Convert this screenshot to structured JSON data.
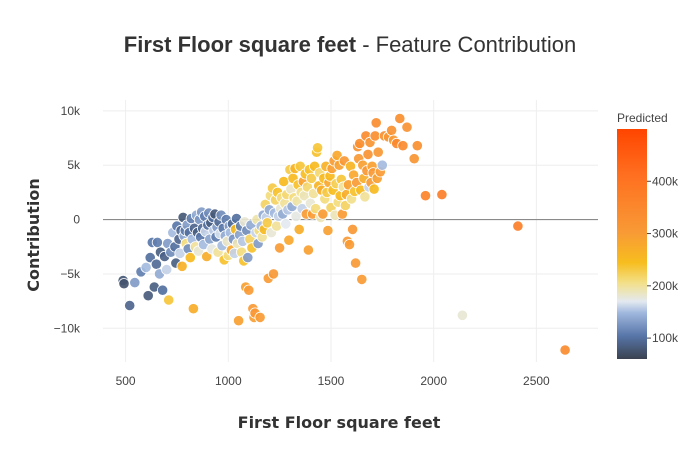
{
  "chart_data": {
    "type": "scatter",
    "title": "First Floor square feet",
    "subtitle": " - Feature Contribution",
    "xlabel": "First Floor square feet",
    "ylabel": "Contribution",
    "xlim": [
      390,
      2800
    ],
    "ylim": [
      -13100,
      11000
    ],
    "x_ticks": [
      500,
      1000,
      1500,
      2000,
      2500
    ],
    "x_tick_labels": [
      "500",
      "1000",
      "1500",
      "2000",
      "2500"
    ],
    "y_ticks": [
      10000,
      5000,
      0,
      -5000,
      -10000
    ],
    "y_tick_labels": [
      "10k",
      "5k",
      "0",
      "−5k",
      "−10k"
    ],
    "grid": true,
    "zero_line": true,
    "colorbar": {
      "title": "Predicted",
      "range": [
        60000,
        500000
      ],
      "ticks": [
        100000,
        200000,
        300000,
        400000
      ],
      "tick_labels": [
        "100k",
        "200k",
        "300k",
        "400k"
      ],
      "colorscale": [
        [
          0.0,
          "#3a4250"
        ],
        [
          0.1,
          "#5775a8"
        ],
        [
          0.2,
          "#9fb7dd"
        ],
        [
          0.25,
          "#e3e9f0"
        ],
        [
          0.33,
          "#f3e08a"
        ],
        [
          0.42,
          "#f7bd1e"
        ],
        [
          0.55,
          "#f89a36"
        ],
        [
          0.8,
          "#ff6f1f"
        ],
        [
          1.0,
          "#ff4500"
        ]
      ]
    },
    "points": [
      {
        "x": 488,
        "y": -5600,
        "c": 80000
      },
      {
        "x": 492,
        "y": -5900,
        "c": 75000
      },
      {
        "x": 520,
        "y": -7900,
        "c": 90000
      },
      {
        "x": 545,
        "y": -5800,
        "c": 130000
      },
      {
        "x": 575,
        "y": -4800,
        "c": 110000
      },
      {
        "x": 600,
        "y": -4400,
        "c": 150000
      },
      {
        "x": 610,
        "y": -7000,
        "c": 82000
      },
      {
        "x": 620,
        "y": -3500,
        "c": 100000
      },
      {
        "x": 630,
        "y": -2100,
        "c": 105000
      },
      {
        "x": 640,
        "y": -6200,
        "c": 85000
      },
      {
        "x": 650,
        "y": -4100,
        "c": 95000
      },
      {
        "x": 655,
        "y": -2100,
        "c": 110000
      },
      {
        "x": 665,
        "y": -5000,
        "c": 140000
      },
      {
        "x": 670,
        "y": -3000,
        "c": 85000
      },
      {
        "x": 680,
        "y": -6500,
        "c": 100000
      },
      {
        "x": 690,
        "y": -3400,
        "c": 88000
      },
      {
        "x": 700,
        "y": -4600,
        "c": 160000
      },
      {
        "x": 705,
        "y": -2200,
        "c": 130000
      },
      {
        "x": 710,
        "y": -7400,
        "c": 235000
      },
      {
        "x": 720,
        "y": -3000,
        "c": 120000
      },
      {
        "x": 730,
        "y": -1200,
        "c": 150000
      },
      {
        "x": 740,
        "y": -2500,
        "c": 100000
      },
      {
        "x": 745,
        "y": -4000,
        "c": 85000
      },
      {
        "x": 750,
        "y": -600,
        "c": 105000
      },
      {
        "x": 760,
        "y": -1800,
        "c": 90000
      },
      {
        "x": 765,
        "y": -3100,
        "c": 160000
      },
      {
        "x": 770,
        "y": -1000,
        "c": 95000
      },
      {
        "x": 775,
        "y": -4300,
        "c": 265000
      },
      {
        "x": 780,
        "y": 200,
        "c": 80000
      },
      {
        "x": 785,
        "y": -1500,
        "c": 140000
      },
      {
        "x": 790,
        "y": -1000,
        "c": 105000
      },
      {
        "x": 795,
        "y": -2200,
        "c": 210000
      },
      {
        "x": 800,
        "y": -500,
        "c": 130000
      },
      {
        "x": 805,
        "y": -2700,
        "c": 120000
      },
      {
        "x": 810,
        "y": -1200,
        "c": 100000
      },
      {
        "x": 815,
        "y": -3500,
        "c": 250000
      },
      {
        "x": 820,
        "y": 100,
        "c": 110000
      },
      {
        "x": 825,
        "y": -1800,
        "c": 150000
      },
      {
        "x": 830,
        "y": -8200,
        "c": 270000
      },
      {
        "x": 835,
        "y": -800,
        "c": 90000
      },
      {
        "x": 840,
        "y": -2500,
        "c": 200000
      },
      {
        "x": 845,
        "y": 400,
        "c": 140000
      },
      {
        "x": 850,
        "y": -1200,
        "c": 85000
      },
      {
        "x": 855,
        "y": -2900,
        "c": 180000
      },
      {
        "x": 860,
        "y": 0,
        "c": 125000
      },
      {
        "x": 865,
        "y": -1600,
        "c": 105000
      },
      {
        "x": 870,
        "y": 700,
        "c": 130000
      },
      {
        "x": 875,
        "y": -800,
        "c": 95000
      },
      {
        "x": 880,
        "y": -2300,
        "c": 150000
      },
      {
        "x": 885,
        "y": 300,
        "c": 110000
      },
      {
        "x": 890,
        "y": -1100,
        "c": 160000
      },
      {
        "x": 895,
        "y": -3400,
        "c": 270000
      },
      {
        "x": 900,
        "y": -500,
        "c": 100000
      },
      {
        "x": 905,
        "y": 600,
        "c": 120000
      },
      {
        "x": 910,
        "y": -1800,
        "c": 135000
      },
      {
        "x": 915,
        "y": -300,
        "c": 85000
      },
      {
        "x": 920,
        "y": -2700,
        "c": 175000
      },
      {
        "x": 925,
        "y": 200,
        "c": 100000
      },
      {
        "x": 930,
        "y": -1000,
        "c": 155000
      },
      {
        "x": 935,
        "y": 500,
        "c": 80000
      },
      {
        "x": 940,
        "y": -1600,
        "c": 110000
      },
      {
        "x": 945,
        "y": -700,
        "c": 130000
      },
      {
        "x": 950,
        "y": -3000,
        "c": 200000
      },
      {
        "x": 955,
        "y": -200,
        "c": 95000
      },
      {
        "x": 960,
        "y": -1300,
        "c": 165000
      },
      {
        "x": 965,
        "y": 400,
        "c": 120000
      },
      {
        "x": 970,
        "y": -2400,
        "c": 150000
      },
      {
        "x": 975,
        "y": -800,
        "c": 105000
      },
      {
        "x": 980,
        "y": -3700,
        "c": 240000
      },
      {
        "x": 985,
        "y": -1500,
        "c": 140000
      },
      {
        "x": 990,
        "y": 0,
        "c": 110000
      },
      {
        "x": 995,
        "y": -2000,
        "c": 185000
      },
      {
        "x": 1000,
        "y": -3300,
        "c": 210000
      },
      {
        "x": 1005,
        "y": -600,
        "c": 130000
      },
      {
        "x": 1010,
        "y": -1200,
        "c": 150000
      },
      {
        "x": 1015,
        "y": -2800,
        "c": 280000
      },
      {
        "x": 1020,
        "y": -400,
        "c": 95000
      },
      {
        "x": 1025,
        "y": -1800,
        "c": 125000
      },
      {
        "x": 1030,
        "y": -3100,
        "c": 160000
      },
      {
        "x": 1035,
        "y": -900,
        "c": 250000
      },
      {
        "x": 1040,
        "y": 100,
        "c": 100000
      },
      {
        "x": 1045,
        "y": -2200,
        "c": 190000
      },
      {
        "x": 1050,
        "y": -9300,
        "c": 290000
      },
      {
        "x": 1055,
        "y": -1400,
        "c": 135000
      },
      {
        "x": 1060,
        "y": -600,
        "c": 110000
      },
      {
        "x": 1065,
        "y": -3000,
        "c": 210000
      },
      {
        "x": 1070,
        "y": -2000,
        "c": 155000
      },
      {
        "x": 1075,
        "y": -3800,
        "c": 240000
      },
      {
        "x": 1080,
        "y": -200,
        "c": 180000
      },
      {
        "x": 1085,
        "y": -6200,
        "c": 290000
      },
      {
        "x": 1090,
        "y": -1000,
        "c": 120000
      },
      {
        "x": 1095,
        "y": -3500,
        "c": 130000
      },
      {
        "x": 1100,
        "y": -6500,
        "c": 300000
      },
      {
        "x": 1105,
        "y": -1800,
        "c": 220000
      },
      {
        "x": 1110,
        "y": -500,
        "c": 140000
      },
      {
        "x": 1115,
        "y": -2600,
        "c": 240000
      },
      {
        "x": 1120,
        "y": -8200,
        "c": 305000
      },
      {
        "x": 1125,
        "y": -9000,
        "c": 295000
      },
      {
        "x": 1130,
        "y": -8600,
        "c": 310000
      },
      {
        "x": 1135,
        "y": -1200,
        "c": 160000
      },
      {
        "x": 1140,
        "y": 0,
        "c": 195000
      },
      {
        "x": 1145,
        "y": -2200,
        "c": 130000
      },
      {
        "x": 1150,
        "y": -1000,
        "c": 210000
      },
      {
        "x": 1155,
        "y": -9000,
        "c": 300000
      },
      {
        "x": 1160,
        "y": -600,
        "c": 150000
      },
      {
        "x": 1165,
        "y": -1600,
        "c": 200000
      },
      {
        "x": 1170,
        "y": 400,
        "c": 140000
      },
      {
        "x": 1175,
        "y": -900,
        "c": 250000
      },
      {
        "x": 1180,
        "y": 1400,
        "c": 220000
      },
      {
        "x": 1185,
        "y": 200,
        "c": 160000
      },
      {
        "x": 1190,
        "y": -300,
        "c": 230000
      },
      {
        "x": 1195,
        "y": -5400,
        "c": 300000
      },
      {
        "x": 1200,
        "y": 900,
        "c": 140000
      },
      {
        "x": 1205,
        "y": 2200,
        "c": 210000
      },
      {
        "x": 1210,
        "y": -1200,
        "c": 180000
      },
      {
        "x": 1215,
        "y": 2900,
        "c": 230000
      },
      {
        "x": 1220,
        "y": -5000,
        "c": 305000
      },
      {
        "x": 1225,
        "y": 600,
        "c": 150000
      },
      {
        "x": 1230,
        "y": 1800,
        "c": 220000
      },
      {
        "x": 1235,
        "y": -600,
        "c": 200000
      },
      {
        "x": 1240,
        "y": 2500,
        "c": 240000
      },
      {
        "x": 1245,
        "y": 300,
        "c": 160000
      },
      {
        "x": 1250,
        "y": -2600,
        "c": 300000
      },
      {
        "x": 1255,
        "y": 1000,
        "c": 180000
      },
      {
        "x": 1260,
        "y": 2000,
        "c": 210000
      },
      {
        "x": 1265,
        "y": 500,
        "c": 140000
      },
      {
        "x": 1270,
        "y": 3500,
        "c": 250000
      },
      {
        "x": 1275,
        "y": 1500,
        "c": 200000
      },
      {
        "x": 1280,
        "y": -400,
        "c": 170000
      },
      {
        "x": 1285,
        "y": 2300,
        "c": 215000
      },
      {
        "x": 1290,
        "y": 900,
        "c": 155000
      },
      {
        "x": 1295,
        "y": -1900,
        "c": 280000
      },
      {
        "x": 1300,
        "y": 4600,
        "c": 230000
      },
      {
        "x": 1305,
        "y": 2800,
        "c": 185000
      },
      {
        "x": 1310,
        "y": 1200,
        "c": 140000
      },
      {
        "x": 1315,
        "y": 3800,
        "c": 250000
      },
      {
        "x": 1320,
        "y": 2000,
        "c": 210000
      },
      {
        "x": 1325,
        "y": 4700,
        "c": 260000
      },
      {
        "x": 1330,
        "y": 300,
        "c": 175000
      },
      {
        "x": 1335,
        "y": 1700,
        "c": 195000
      },
      {
        "x": 1340,
        "y": 3200,
        "c": 240000
      },
      {
        "x": 1345,
        "y": -900,
        "c": 270000
      },
      {
        "x": 1350,
        "y": 4900,
        "c": 235000
      },
      {
        "x": 1355,
        "y": 2500,
        "c": 205000
      },
      {
        "x": 1360,
        "y": 1000,
        "c": 160000
      },
      {
        "x": 1365,
        "y": 3500,
        "c": 290000
      },
      {
        "x": 1370,
        "y": 2200,
        "c": 190000
      },
      {
        "x": 1375,
        "y": 4200,
        "c": 245000
      },
      {
        "x": 1380,
        "y": 500,
        "c": 300000
      },
      {
        "x": 1385,
        "y": 3000,
        "c": 215000
      },
      {
        "x": 1390,
        "y": -2800,
        "c": 290000
      },
      {
        "x": 1395,
        "y": 4600,
        "c": 240000
      },
      {
        "x": 1400,
        "y": 1500,
        "c": 180000
      },
      {
        "x": 1405,
        "y": 3800,
        "c": 230000
      },
      {
        "x": 1410,
        "y": 500,
        "c": 300000
      },
      {
        "x": 1415,
        "y": 2400,
        "c": 200000
      },
      {
        "x": 1420,
        "y": 4900,
        "c": 250000
      },
      {
        "x": 1425,
        "y": 1000,
        "c": 210000
      },
      {
        "x": 1430,
        "y": 6200,
        "c": 240000
      },
      {
        "x": 1435,
        "y": 6600,
        "c": 235000
      },
      {
        "x": 1440,
        "y": 3100,
        "c": 260000
      },
      {
        "x": 1445,
        "y": 4300,
        "c": 215000
      },
      {
        "x": 1450,
        "y": 200,
        "c": 190000
      },
      {
        "x": 1455,
        "y": 2700,
        "c": 270000
      },
      {
        "x": 1460,
        "y": 500,
        "c": 300000
      },
      {
        "x": 1465,
        "y": 3800,
        "c": 250000
      },
      {
        "x": 1470,
        "y": 1900,
        "c": 210000
      },
      {
        "x": 1475,
        "y": 4900,
        "c": 265000
      },
      {
        "x": 1480,
        "y": 2500,
        "c": 230000
      },
      {
        "x": 1485,
        "y": -1000,
        "c": 290000
      },
      {
        "x": 1490,
        "y": 3400,
        "c": 280000
      },
      {
        "x": 1495,
        "y": 4000,
        "c": 250000
      },
      {
        "x": 1500,
        "y": 1100,
        "c": 220000
      },
      {
        "x": 1505,
        "y": 4700,
        "c": 295000
      },
      {
        "x": 1510,
        "y": 2700,
        "c": 245000
      },
      {
        "x": 1515,
        "y": 5400,
        "c": 300000
      },
      {
        "x": 1520,
        "y": 400,
        "c": 190000
      },
      {
        "x": 1525,
        "y": 3300,
        "c": 225000
      },
      {
        "x": 1530,
        "y": 5900,
        "c": 280000
      },
      {
        "x": 1535,
        "y": 1600,
        "c": 210000
      },
      {
        "x": 1540,
        "y": 5000,
        "c": 290000
      },
      {
        "x": 1545,
        "y": 2200,
        "c": 250000
      },
      {
        "x": 1550,
        "y": 3700,
        "c": 235000
      },
      {
        "x": 1555,
        "y": 500,
        "c": 300000
      },
      {
        "x": 1560,
        "y": 3000,
        "c": 200000
      },
      {
        "x": 1565,
        "y": 5400,
        "c": 310000
      },
      {
        "x": 1570,
        "y": 1300,
        "c": 220000
      },
      {
        "x": 1575,
        "y": 2300,
        "c": 270000
      },
      {
        "x": 1580,
        "y": -2000,
        "c": 305000
      },
      {
        "x": 1585,
        "y": 3200,
        "c": 290000
      },
      {
        "x": 1590,
        "y": -2300,
        "c": 300000
      },
      {
        "x": 1595,
        "y": 4900,
        "c": 260000
      },
      {
        "x": 1600,
        "y": 1900,
        "c": 205000
      },
      {
        "x": 1605,
        "y": -900,
        "c": 310000
      },
      {
        "x": 1610,
        "y": 4100,
        "c": 280000
      },
      {
        "x": 1615,
        "y": 2600,
        "c": 240000
      },
      {
        "x": 1620,
        "y": -4000,
        "c": 305000
      },
      {
        "x": 1625,
        "y": 3400,
        "c": 300000
      },
      {
        "x": 1630,
        "y": 6700,
        "c": 320000
      },
      {
        "x": 1635,
        "y": 5600,
        "c": 305000
      },
      {
        "x": 1640,
        "y": 7000,
        "c": 330000
      },
      {
        "x": 1645,
        "y": 2700,
        "c": 250000
      },
      {
        "x": 1650,
        "y": -5500,
        "c": 300000
      },
      {
        "x": 1655,
        "y": 5000,
        "c": 290000
      },
      {
        "x": 1660,
        "y": 3800,
        "c": 270000
      },
      {
        "x": 1665,
        "y": 2100,
        "c": 200000
      },
      {
        "x": 1670,
        "y": 7700,
        "c": 340000
      },
      {
        "x": 1675,
        "y": 4500,
        "c": 310000
      },
      {
        "x": 1680,
        "y": 6000,
        "c": 320000
      },
      {
        "x": 1685,
        "y": 3000,
        "c": 160000
      },
      {
        "x": 1690,
        "y": 7100,
        "c": 315000
      },
      {
        "x": 1695,
        "y": 3400,
        "c": 300000
      },
      {
        "x": 1700,
        "y": 4900,
        "c": 290000
      },
      {
        "x": 1705,
        "y": 4300,
        "c": 305000
      },
      {
        "x": 1710,
        "y": 2800,
        "c": 250000
      },
      {
        "x": 1715,
        "y": 7700,
        "c": 330000
      },
      {
        "x": 1720,
        "y": 8900,
        "c": 335000
      },
      {
        "x": 1725,
        "y": 3800,
        "c": 290000
      },
      {
        "x": 1730,
        "y": 6200,
        "c": 310000
      },
      {
        "x": 1740,
        "y": 4400,
        "c": 300000
      },
      {
        "x": 1750,
        "y": 5000,
        "c": 150000
      },
      {
        "x": 1760,
        "y": 7700,
        "c": 330000
      },
      {
        "x": 1780,
        "y": 7600,
        "c": 310000
      },
      {
        "x": 1795,
        "y": 8200,
        "c": 320000
      },
      {
        "x": 1805,
        "y": 7300,
        "c": 300000
      },
      {
        "x": 1820,
        "y": 7000,
        "c": 350000
      },
      {
        "x": 1835,
        "y": 9300,
        "c": 330000
      },
      {
        "x": 1850,
        "y": 6800,
        "c": 340000
      },
      {
        "x": 1870,
        "y": 8500,
        "c": 320000
      },
      {
        "x": 1905,
        "y": 5600,
        "c": 315000
      },
      {
        "x": 1920,
        "y": 6800,
        "c": 330000
      },
      {
        "x": 1960,
        "y": 2200,
        "c": 360000
      },
      {
        "x": 2040,
        "y": 2300,
        "c": 370000
      },
      {
        "x": 2140,
        "y": -8800,
        "c": 180000
      },
      {
        "x": 2410,
        "y": -600,
        "c": 370000
      },
      {
        "x": 2640,
        "y": -12000,
        "c": 340000
      }
    ]
  }
}
